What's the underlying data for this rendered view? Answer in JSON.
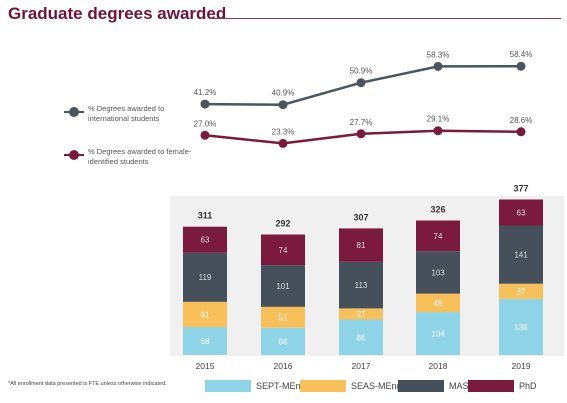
{
  "title": "Graduate degrees awarded",
  "line_legend": [
    {
      "label": "% Degrees awarded to international students",
      "color": "#4a5560"
    },
    {
      "label": "% Degrees awarded to female-identified students",
      "color": "#7a1a3c"
    }
  ],
  "footnote": "*All enrollment data presented is FTE unless otherwise indicated.",
  "bar_legend": [
    {
      "label": "SEPT-MEng",
      "color": "#8ed3e6"
    },
    {
      "label": "SEAS-MEng",
      "color": "#f7c05a"
    },
    {
      "label": "MASc",
      "color": "#46505a"
    },
    {
      "label": "PhD",
      "color": "#7a1a3c"
    }
  ],
  "chart_data": [
    {
      "type": "line",
      "categories": [
        "2015",
        "2016",
        "2017",
        "2018",
        "2019"
      ],
      "series": [
        {
          "name": "% Degrees awarded to international students",
          "values": [
            41.2,
            40.9,
            50.9,
            58.3,
            58.4
          ],
          "labels": [
            "41.2%",
            "40.9%",
            "50.9%",
            "58.3%",
            "58.4%"
          ],
          "color": "#4a5560"
        },
        {
          "name": "% Degrees awarded to female-identified students",
          "values": [
            27.0,
            23.3,
            27.7,
            29.1,
            28.6
          ],
          "labels": [
            "27.0%",
            "23.3%",
            "27.7%",
            "29.1%",
            "28.6%"
          ],
          "color": "#7a1a3c"
        }
      ],
      "grid": false
    },
    {
      "type": "bar",
      "stacked": true,
      "categories": [
        "2015",
        "2016",
        "2017",
        "2018",
        "2019"
      ],
      "totals": [
        311,
        292,
        307,
        326,
        377
      ],
      "series": [
        {
          "name": "SEPT-MEng",
          "values": [
            68,
            66,
            86,
            104,
            136
          ],
          "color": "#8ed3e6"
        },
        {
          "name": "SEAS-MEng",
          "values": [
            61,
            51,
            27,
            45,
            37
          ],
          "color": "#f7c05a"
        },
        {
          "name": "MASc",
          "values": [
            119,
            101,
            113,
            103,
            141
          ],
          "color": "#46505a"
        },
        {
          "name": "PhD",
          "values": [
            63,
            74,
            81,
            74,
            63
          ],
          "color": "#7a1a3c"
        }
      ],
      "grid": false
    }
  ]
}
